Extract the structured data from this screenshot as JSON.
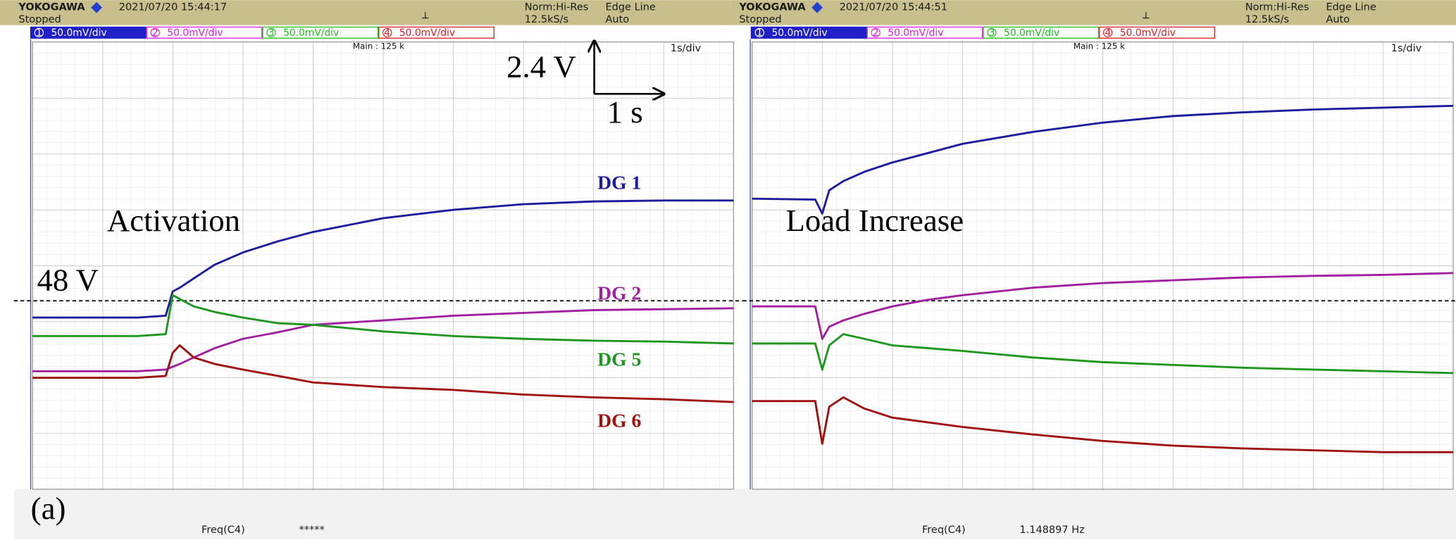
{
  "chart_data": [
    {
      "type": "line",
      "x": [
        0,
        1.5,
        1.9,
        2.0,
        2.1,
        2.3,
        2.6,
        3.0,
        3.5,
        4.0,
        5.0,
        6.0,
        7.0,
        8.0,
        9.0,
        10.0
      ],
      "xlim": [
        0,
        10
      ],
      "ylim": [
        39.92,
        59.1
      ],
      "series": [
        {
          "name": "DG 1",
          "color": "#1c1c9c",
          "values": [
            47.28,
            47.28,
            47.36,
            48.4,
            48.56,
            48.96,
            49.55,
            50.07,
            50.55,
            50.95,
            51.54,
            51.9,
            52.14,
            52.26,
            52.3,
            52.3
          ]
        },
        {
          "name": "DG 2",
          "color": "#a020a0",
          "values": [
            44.98,
            44.98,
            45.05,
            45.17,
            45.29,
            45.57,
            45.97,
            46.37,
            46.65,
            46.97,
            47.16,
            47.36,
            47.48,
            47.6,
            47.64,
            47.68
          ]
        },
        {
          "name": "DG 5",
          "color": "#1f961f",
          "values": [
            46.49,
            46.49,
            46.57,
            48.24,
            48.08,
            47.76,
            47.52,
            47.28,
            47.04,
            46.97,
            46.69,
            46.49,
            46.37,
            46.29,
            46.25,
            46.17
          ]
        },
        {
          "name": "DG 6",
          "color": "#a01212",
          "values": [
            44.7,
            44.7,
            44.78,
            45.77,
            46.09,
            45.57,
            45.29,
            45.05,
            44.78,
            44.5,
            44.3,
            44.18,
            43.98,
            43.86,
            43.78,
            43.66
          ]
        }
      ],
      "reference": {
        "value": 48,
        "label": "48 V"
      },
      "annotations": [
        "Activation",
        "2.4 V",
        "1 s"
      ]
    },
    {
      "type": "line",
      "x": [
        0,
        0.9,
        1.0,
        1.1,
        1.3,
        1.6,
        2.0,
        2.5,
        3.0,
        4.0,
        5.0,
        6.0,
        7.0,
        8.0,
        9.0,
        10.0
      ],
      "xlim": [
        0,
        10
      ],
      "ylim": [
        39.92,
        59.1
      ],
      "series": [
        {
          "color": "#1c1c9c",
          "values": [
            52.38,
            52.34,
            51.74,
            52.74,
            53.13,
            53.53,
            53.93,
            54.33,
            54.73,
            55.24,
            55.64,
            55.92,
            56.08,
            56.2,
            56.28,
            56.36
          ]
        },
        {
          "color": "#a020a0",
          "values": [
            47.76,
            47.76,
            46.37,
            46.89,
            47.16,
            47.44,
            47.76,
            48.04,
            48.24,
            48.56,
            48.76,
            48.88,
            49.0,
            49.07,
            49.11,
            49.19
          ]
        },
        {
          "color": "#1f961f",
          "values": [
            46.17,
            46.17,
            45.05,
            46.09,
            46.57,
            46.37,
            46.09,
            45.97,
            45.85,
            45.57,
            45.37,
            45.25,
            45.13,
            45.05,
            44.98,
            44.9
          ]
        },
        {
          "color": "#a01212",
          "values": [
            43.7,
            43.7,
            41.87,
            43.46,
            43.86,
            43.38,
            42.99,
            42.79,
            42.59,
            42.27,
            41.99,
            41.79,
            41.67,
            41.59,
            41.51,
            41.51
          ]
        }
      ],
      "reference": {
        "value": 48
      },
      "annotations": [
        "Load Increase"
      ]
    }
  ],
  "screens": [
    {
      "brand": "YOKOGAWA",
      "datetime": "2021/07/20 15:44:17",
      "status": "Stopped",
      "mode": "Norm:Hi-Res",
      "rate": "12.5kS/s",
      "trigger": "Edge Line",
      "trigger_mode": "Auto",
      "channels": [
        {
          "id": "1",
          "scale": "50.0mV/div"
        },
        {
          "id": "2",
          "scale": "50.0mV/div"
        },
        {
          "id": "3",
          "scale": "50.0mV/div"
        },
        {
          "id": "4",
          "scale": "50.0mV/div"
        }
      ],
      "main": "Main : 125 k",
      "timebase": "1s/div",
      "freq_label": "Freq(C4)",
      "freq_value": "*****"
    },
    {
      "brand": "YOKOGAWA",
      "datetime": "2021/07/20 15:44:51",
      "status": "Stopped",
      "mode": "Norm:Hi-Res",
      "rate": "12.5kS/s",
      "trigger": "Edge Line",
      "trigger_mode": "Auto",
      "channels": [
        {
          "id": "1",
          "scale": "50.0mV/div"
        },
        {
          "id": "2",
          "scale": "50.0mV/div"
        },
        {
          "id": "3",
          "scale": "50.0mV/div"
        },
        {
          "id": "4",
          "scale": "50.0mV/div"
        }
      ],
      "main": "Main : 125 k",
      "timebase": "1s/div",
      "freq_label": "Freq(C4)",
      "freq_value": "1.148897 Hz"
    }
  ],
  "panel_label": "(a)"
}
